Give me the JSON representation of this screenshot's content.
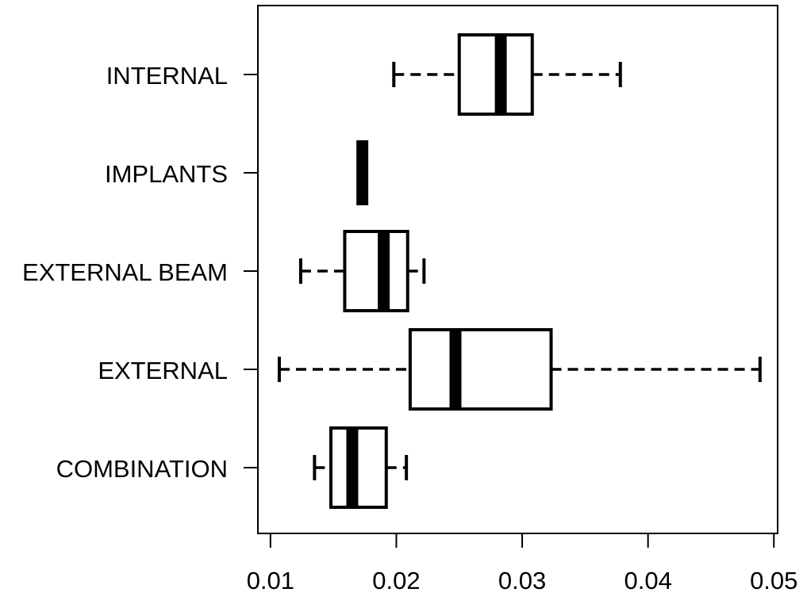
{
  "chart_data": {
    "type": "boxplot",
    "orientation": "horizontal",
    "title": "",
    "xlabel": "",
    "ylabel": "",
    "xlim": [
      0.009,
      0.0503
    ],
    "x_ticks": [
      0.01,
      0.02,
      0.03,
      0.04,
      0.05
    ],
    "x_tick_labels": [
      "0.01",
      "0.02",
      "0.03",
      "0.04",
      "0.05"
    ],
    "grid": false,
    "legend": "none",
    "categories": [
      "INTERNAL",
      "IMPLANTS",
      "EXTERNAL BEAM",
      "EXTERNAL",
      "COMBINATION"
    ],
    "boxes": [
      {
        "category": "INTERNAL",
        "whisker_low": 0.0198,
        "q1": 0.025,
        "median": 0.0283,
        "q3": 0.0308,
        "whisker_high": 0.0378
      },
      {
        "category": "IMPLANTS",
        "whisker_low": 0.0173,
        "q1": 0.0173,
        "median": 0.0173,
        "q3": 0.0173,
        "whisker_high": 0.0173
      },
      {
        "category": "EXTERNAL BEAM",
        "whisker_low": 0.0124,
        "q1": 0.0159,
        "median": 0.019,
        "q3": 0.0209,
        "whisker_high": 0.0222
      },
      {
        "category": "EXTERNAL",
        "whisker_low": 0.0107,
        "q1": 0.0211,
        "median": 0.0247,
        "q3": 0.0323,
        "whisker_high": 0.0489
      },
      {
        "category": "COMBINATION",
        "whisker_low": 0.0135,
        "q1": 0.0148,
        "median": 0.0165,
        "q3": 0.0192,
        "whisker_high": 0.0208
      }
    ]
  },
  "colors": {
    "box_stroke": "#000000",
    "box_fill": "#ffffff",
    "median": "#000000",
    "background": "#ffffff"
  }
}
